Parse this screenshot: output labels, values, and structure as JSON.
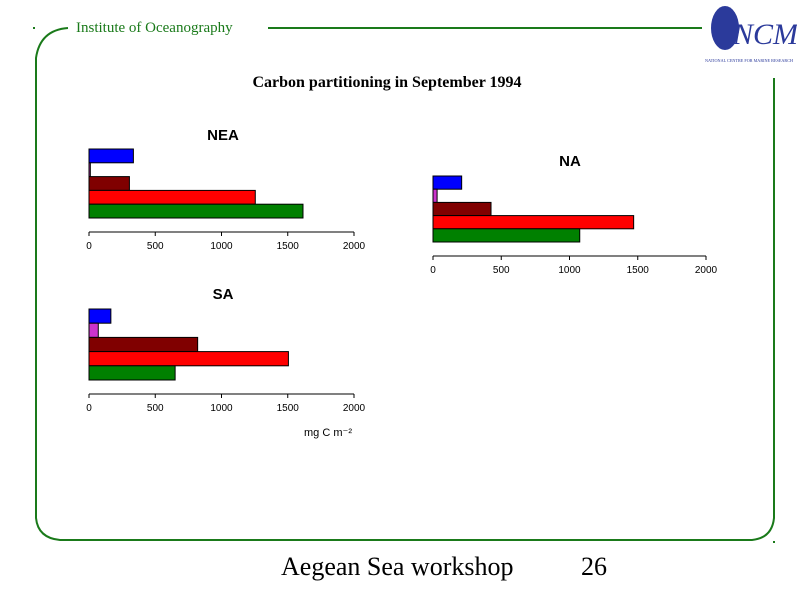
{
  "header": {
    "institute": "Institute of Oceanography"
  },
  "logo": {
    "text": "NCMR",
    "subtext": "NATIONAL CENTRE FOR MARINE RESEARCH"
  },
  "slide": {
    "title": "Carbon partitioning in September 1994"
  },
  "footer": {
    "workshop": "Aegean Sea workshop",
    "page": "26"
  },
  "colors": {
    "accent_green": "#1a7a1a",
    "bars": [
      "#0000ff",
      "#cc33cc",
      "#800000",
      "#ff0000",
      "#008000"
    ]
  },
  "chart_data": [
    {
      "type": "bar",
      "orientation": "horizontal",
      "title": "NEA",
      "values": [
        335,
        10,
        305,
        1255,
        1615
      ],
      "xlim": [
        0,
        2000
      ],
      "ticks": [
        "0",
        "500",
        "1000",
        "1500",
        "2000"
      ],
      "xlabel": ""
    },
    {
      "type": "bar",
      "orientation": "horizontal",
      "title": "NA",
      "values": [
        210,
        30,
        425,
        1470,
        1075
      ],
      "xlim": [
        0,
        2000
      ],
      "ticks": [
        "0",
        "500",
        "1000",
        "1500",
        "2000"
      ],
      "xlabel": ""
    },
    {
      "type": "bar",
      "orientation": "horizontal",
      "title": "SA",
      "values": [
        165,
        70,
        820,
        1505,
        650
      ],
      "xlim": [
        0,
        2000
      ],
      "ticks": [
        "0",
        "500",
        "1000",
        "1500",
        "2000"
      ],
      "xlabel": "mg C m⁻²"
    }
  ]
}
